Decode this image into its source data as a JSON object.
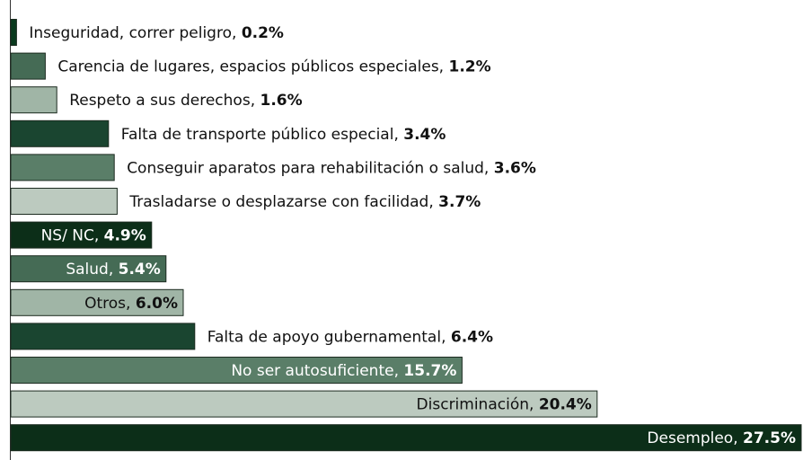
{
  "chart_data": {
    "type": "barh",
    "categories": [
      "Inseguridad, correr peligro,",
      "Carencia de lugares, espacios públicos especiales,",
      "Respeto a sus derechos,",
      "Falta de transporte público especial,",
      "Conseguir aparatos para rehabilitación o salud,",
      "Trasladarse o desplazarse con facilidad,",
      "NS/ NC,",
      "Salud,",
      "Otros,",
      "Falta de apoyo gubernamental,",
      "No ser autosuficiente,",
      "Discriminación,",
      "Desempleo,"
    ],
    "values": [
      0.2,
      1.2,
      1.6,
      3.4,
      3.6,
      3.7,
      4.9,
      5.4,
      6.0,
      6.4,
      15.7,
      20.4,
      27.5
    ],
    "value_labels": [
      "0.2%",
      "1.2%",
      "1.6%",
      "3.4%",
      "3.6%",
      "3.7%",
      "4.9%",
      "5.4%",
      "6.0%",
      "6.4%",
      "15.7%",
      "20.4%",
      "27.5%"
    ],
    "colors": [
      "#0a3a1e",
      "#456b55",
      "#a0b5a6",
      "#1a4530",
      "#5a7e68",
      "#bccabf",
      "#0c2e18",
      "#456b55",
      "#a0b5a6",
      "#1a4530",
      "#5a7e68",
      "#bccabf",
      "#0c2e18"
    ],
    "xlim": [
      0,
      27.5
    ]
  }
}
